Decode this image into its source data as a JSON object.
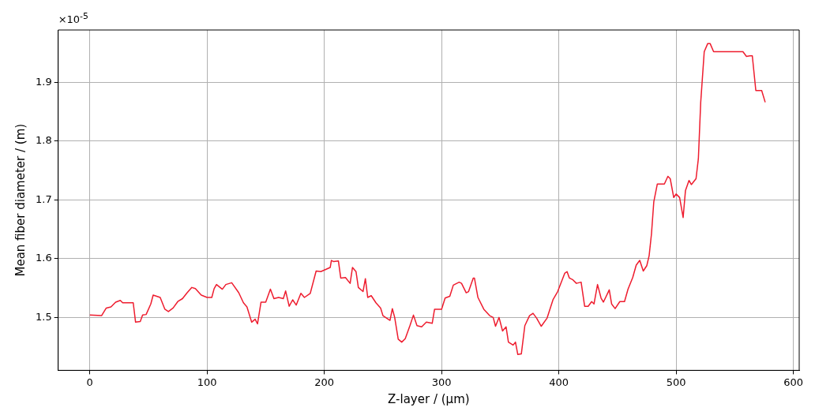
{
  "chart_data": {
    "type": "line",
    "xlabel": "Z-layer / (µm)",
    "ylabel": "Mean fiber diameter / (m)",
    "annotations": [
      "×10$^{-5}$"
    ],
    "xlim": [
      -27,
      605
    ],
    "ylim": [
      1.41,
      1.989
    ],
    "xticks": [
      0,
      100,
      200,
      300,
      400,
      500,
      600
    ],
    "yticks": [
      1.5,
      1.6,
      1.7,
      1.8,
      1.9
    ],
    "grid": true,
    "legend": false,
    "marker": "none",
    "line_style": "solid",
    "series": [
      {
        "color": "#ee1c2e",
        "x": [
          0,
          10,
          14,
          18,
          22,
          26,
          28,
          37,
          39,
          43,
          45,
          48,
          52,
          54,
          60,
          64,
          67,
          71,
          75,
          79,
          83,
          87,
          90,
          95,
          100,
          104,
          106,
          108,
          113,
          116,
          121,
          127,
          131,
          134,
          138,
          141,
          143,
          146,
          150,
          154,
          157,
          161,
          165,
          167,
          170,
          173,
          176,
          180,
          183,
          188,
          193,
          197,
          205,
          206,
          208,
          212,
          214,
          218,
          222,
          224,
          227,
          229,
          233,
          235,
          237,
          240,
          244,
          248,
          250,
          256,
          258,
          260,
          263,
          266,
          269,
          273,
          276,
          279,
          283,
          287,
          292,
          294,
          300,
          303,
          307,
          310,
          315,
          317,
          321,
          323,
          327,
          328,
          331,
          336,
          341,
          344,
          346,
          349,
          352,
          355,
          357,
          361,
          363,
          365,
          368,
          371,
          375,
          378,
          381,
          385,
          390,
          395,
          399,
          405,
          407,
          409,
          412,
          415,
          419,
          422,
          425,
          428,
          430,
          433,
          436,
          438,
          443,
          445,
          448,
          452,
          456,
          459,
          463,
          466,
          469,
          472,
          475,
          477,
          479,
          481,
          484,
          490,
          493,
          495,
          498,
          500,
          503,
          506,
          508,
          511,
          513,
          517,
          519,
          521,
          524,
          527,
          529,
          532,
          557,
          560,
          563,
          565,
          568,
          573,
          576
        ],
        "values": [
          1.504,
          1.503,
          1.516,
          1.518,
          1.526,
          1.529,
          1.525,
          1.525,
          1.492,
          1.493,
          1.504,
          1.505,
          1.523,
          1.538,
          1.534,
          1.514,
          1.51,
          1.516,
          1.527,
          1.532,
          1.542,
          1.551,
          1.549,
          1.538,
          1.534,
          1.534,
          1.549,
          1.556,
          1.548,
          1.556,
          1.559,
          1.542,
          1.525,
          1.518,
          1.492,
          1.497,
          1.489,
          1.526,
          1.526,
          1.548,
          1.532,
          1.534,
          1.532,
          1.545,
          1.519,
          1.53,
          1.521,
          1.541,
          1.534,
          1.541,
          1.579,
          1.578,
          1.585,
          1.597,
          1.595,
          1.596,
          1.567,
          1.568,
          1.558,
          1.585,
          1.578,
          1.551,
          1.544,
          1.566,
          1.534,
          1.537,
          1.525,
          1.516,
          1.503,
          1.495,
          1.515,
          1.5,
          1.463,
          1.458,
          1.464,
          1.486,
          1.504,
          1.486,
          1.484,
          1.492,
          1.49,
          1.514,
          1.514,
          1.533,
          1.536,
          1.555,
          1.56,
          1.558,
          1.542,
          1.544,
          1.567,
          1.567,
          1.534,
          1.514,
          1.503,
          1.5,
          1.485,
          1.5,
          1.477,
          1.484,
          1.458,
          1.453,
          1.458,
          1.437,
          1.438,
          1.486,
          1.503,
          1.507,
          1.499,
          1.485,
          1.499,
          1.53,
          1.544,
          1.575,
          1.578,
          1.567,
          1.564,
          1.558,
          1.56,
          1.519,
          1.519,
          1.527,
          1.523,
          1.556,
          1.533,
          1.526,
          1.547,
          1.523,
          1.515,
          1.527,
          1.527,
          1.548,
          1.568,
          1.589,
          1.597,
          1.579,
          1.588,
          1.605,
          1.642,
          1.697,
          1.727,
          1.727,
          1.74,
          1.736,
          1.704,
          1.71,
          1.704,
          1.67,
          1.716,
          1.733,
          1.726,
          1.736,
          1.77,
          1.866,
          1.952,
          1.966,
          1.966,
          1.952,
          1.952,
          1.944,
          1.945,
          1.945,
          1.886,
          1.886,
          1.866
        ]
      }
    ]
  }
}
